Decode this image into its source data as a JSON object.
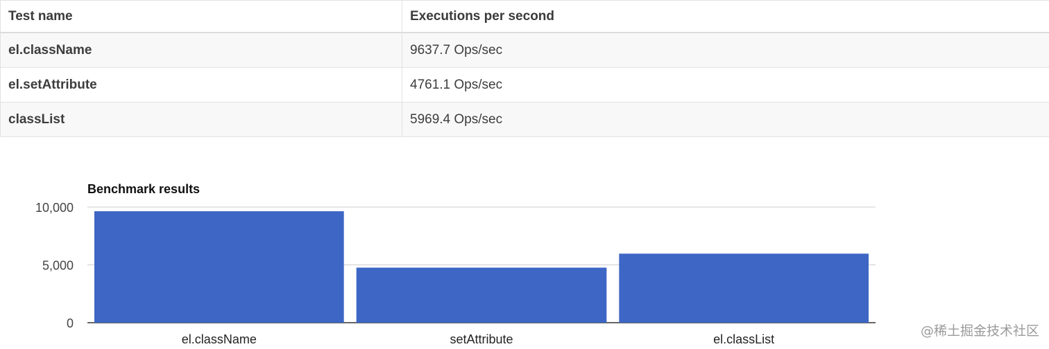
{
  "table": {
    "headers": {
      "name": "Test name",
      "ops": "Executions per second"
    },
    "rows": [
      {
        "name": "el.className",
        "ops": "9637.7 Ops/sec"
      },
      {
        "name": "el.setAttribute",
        "ops": "4761.1 Ops/sec"
      },
      {
        "name": "classList",
        "ops": "5969.4 Ops/sec"
      }
    ]
  },
  "chart_data": {
    "type": "bar",
    "title": "Benchmark results",
    "categories": [
      "el.className",
      "setAttribute",
      "el.classList"
    ],
    "values": [
      9637.7,
      4761.1,
      5969.4
    ],
    "ylim": [
      0,
      10000
    ],
    "yticks": [
      0,
      5000,
      10000
    ],
    "ytick_labels": [
      "0",
      "5,000",
      "10,000"
    ],
    "xlabel": "",
    "ylabel": "",
    "grid": true,
    "bar_color": "#3d66c5",
    "gridline_color": "#cccccc"
  },
  "watermark": "@稀土掘金技术社区"
}
